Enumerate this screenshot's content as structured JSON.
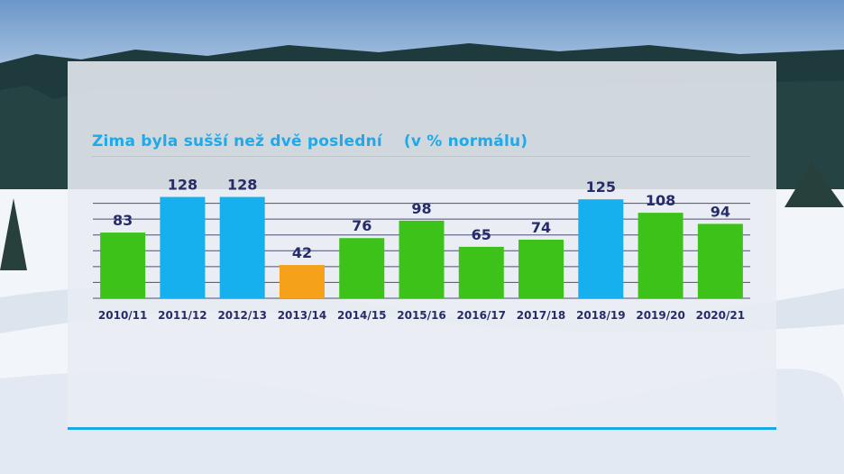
{
  "chart_data": {
    "type": "bar",
    "title": "Zima byla sušší než dvě poslední",
    "subtitle": "(v % normálu)",
    "categories": [
      "2010/11",
      "2011/12",
      "2012/13",
      "2013/14",
      "2014/15",
      "2015/16",
      "2016/17",
      "2017/18",
      "2018/19",
      "2019/20",
      "2020/21"
    ],
    "values": [
      83,
      128,
      128,
      42,
      76,
      98,
      65,
      74,
      125,
      108,
      94
    ],
    "value_labels": [
      "83",
      "128",
      "128",
      "42",
      "76",
      "98",
      "65",
      "74",
      "125",
      "108",
      "94"
    ],
    "bar_colors": [
      "#3cc219",
      "#16b0ee",
      "#16b0ee",
      "#f5a11a",
      "#3cc219",
      "#3cc219",
      "#3cc219",
      "#3cc219",
      "#16b0ee",
      "#3cc219",
      "#3cc219"
    ],
    "ylim": [
      0,
      140
    ],
    "grid": true,
    "xlabel": "",
    "ylabel": ""
  },
  "colors": {
    "title": "#1ea9ea",
    "labels": "#262c6a",
    "rule": "#1aa7e6",
    "grid": "#4b4f78"
  }
}
